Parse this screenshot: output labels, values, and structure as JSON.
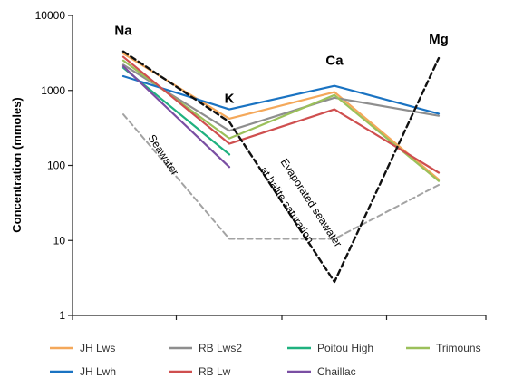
{
  "chart_data": {
    "type": "line",
    "title": "",
    "xlabel": "",
    "ylabel": "Concentration (mmoles)",
    "yscale": "log",
    "ylim": [
      1,
      10000
    ],
    "yticks": [
      {
        "value": 1,
        "label": "1"
      },
      {
        "value": 10,
        "label": "10"
      },
      {
        "value": 100,
        "label": "100"
      },
      {
        "value": 1000,
        "label": "1000"
      },
      {
        "value": 10000,
        "label": "10000"
      }
    ],
    "categories": [
      "Na",
      "K",
      "Ca",
      "Mg"
    ],
    "grid": false,
    "legend_position": "bottom",
    "series": [
      {
        "name": "JH Lws",
        "color": "#f4a85a",
        "dash": "",
        "width": 2.2,
        "values": [
          3100,
          420,
          950,
          65
        ]
      },
      {
        "name": "RB Lws2",
        "color": "#8e8e8e",
        "dash": "",
        "width": 2.2,
        "values": [
          2200,
          290,
          800,
          460
        ]
      },
      {
        "name": "Poitou High",
        "color": "#1fb17f",
        "dash": "",
        "width": 2.2,
        "values": [
          2000,
          140,
          null,
          null
        ]
      },
      {
        "name": "Trimouns",
        "color": "#9bc05a",
        "dash": "",
        "width": 2.2,
        "values": [
          2500,
          230,
          870,
          62
        ]
      },
      {
        "name": "JH Lwh",
        "color": "#1a73c2",
        "dash": "",
        "width": 2.2,
        "values": [
          1550,
          560,
          1150,
          490
        ]
      },
      {
        "name": "RB Lw",
        "color": "#cf4f4f",
        "dash": "",
        "width": 2.2,
        "values": [
          2800,
          195,
          560,
          80
        ]
      },
      {
        "name": "Chaillac",
        "color": "#7a4fa3",
        "dash": "",
        "width": 2.2,
        "values": [
          2100,
          95,
          null,
          null
        ]
      },
      {
        "name": "",
        "color": "#a3a3a3",
        "dash": "6,4",
        "width": 2.0,
        "values": [
          480,
          10.5,
          10.5,
          55
        ]
      },
      {
        "name": "",
        "color": "#111111",
        "dash": "6,4",
        "width": 2.4,
        "values": [
          3300,
          380,
          2.8,
          2700
        ]
      }
    ],
    "annotations": [
      {
        "text": "Na",
        "x": "Na",
        "y": 5500,
        "size": 15,
        "weight": "bold",
        "rotate": 0
      },
      {
        "text": "K",
        "x": "K",
        "y": 680,
        "size": 15,
        "weight": "bold",
        "rotate": 0
      },
      {
        "text": "Ca",
        "x": "Ca",
        "y": 2200,
        "size": 15,
        "weight": "bold",
        "rotate": 0
      },
      {
        "text": "Mg",
        "x": "Mg",
        "y": 4200,
        "size": 15,
        "weight": "bold",
        "rotate": 0
      },
      {
        "text": "Seawater",
        "x": 0.35,
        "y": 130,
        "size": 12,
        "weight": "normal",
        "rotate": 57
      },
      {
        "text": "Evaporated seawater",
        "x": 1.75,
        "y": 30,
        "size": 12,
        "weight": "normal",
        "rotate": 57
      },
      {
        "text": "at halite saturation",
        "x": 1.52,
        "y": 28,
        "size": 12,
        "weight": "normal",
        "rotate": 57
      }
    ]
  }
}
